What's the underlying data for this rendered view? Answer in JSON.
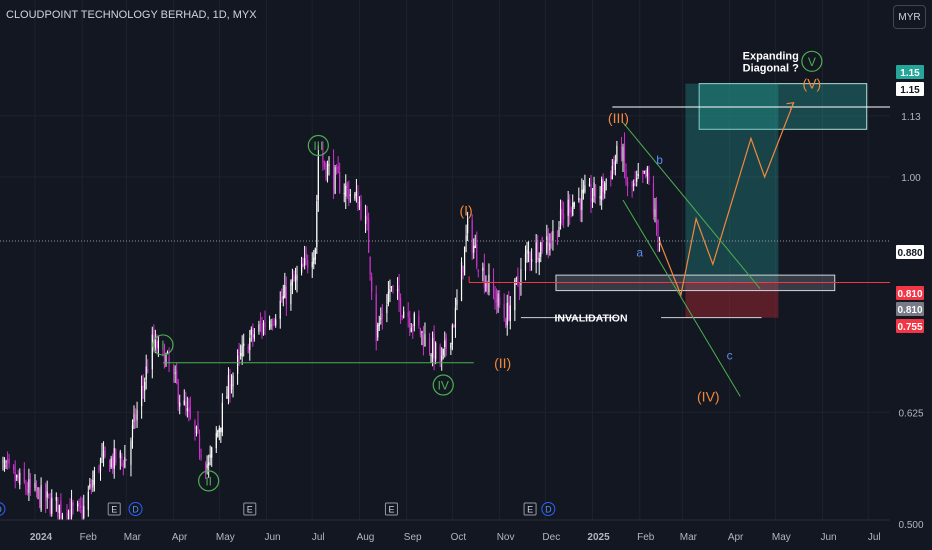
{
  "header": {
    "title": "CLOUDPOINT TECHNOLOGY BERHAD, 1D, MYX",
    "currency": "MYR"
  },
  "colors": {
    "background": "#131722",
    "up": "#ffffff",
    "down": "#cc33cc",
    "wave_green": "#4caf50",
    "wave_orange": "#f0883e",
    "abc_blue": "#2962ff",
    "target_box": "#26a69a",
    "stop_box": "#b22833",
    "red_line": "#f23645"
  },
  "annotations": {
    "primary_waves": [
      {
        "label": "I",
        "date": "2024-03-25",
        "price": 0.715
      },
      {
        "label": "II",
        "date": "2024-04-24",
        "price": 0.545
      },
      {
        "label": "III",
        "date": "2024-07-05",
        "price": 1.065
      },
      {
        "label": "IV",
        "date": "2024-09-25",
        "price": 0.66
      },
      {
        "label": "V",
        "date": "2025-05-25",
        "price": 1.26
      }
    ],
    "intermediate_waves": [
      {
        "label": "(I)",
        "date": "2024-10-10",
        "price": 0.935
      },
      {
        "label": "(II)",
        "date": "2024-11-03",
        "price": 0.69
      },
      {
        "label": "(III)",
        "date": "2025-01-18",
        "price": 1.125
      },
      {
        "label": "(IV)",
        "date": "2025-03-18",
        "price": 0.645
      },
      {
        "label": "(V)",
        "date": "2025-05-25",
        "price": 1.205
      }
    ],
    "corrective_waves": [
      {
        "label": "a",
        "date": "2025-02-01",
        "price": 0.86
      },
      {
        "label": "b",
        "date": "2025-02-14",
        "price": 1.035
      },
      {
        "label": "c",
        "date": "2025-04-01",
        "price": 0.7
      }
    ],
    "expanding_diagonal": "Expanding\nDiagonal ?",
    "invalidation": "INVALIDATION"
  },
  "price_axis": {
    "ticks": [
      "1.13",
      "1.00",
      "0.625",
      "0.500"
    ],
    "markers": [
      {
        "label": "1.15",
        "bg": "#26a69a",
        "fg": "#ffffff"
      },
      {
        "label": "1.15",
        "bg": "#ffffff",
        "fg": "#131722"
      },
      {
        "label": "0.880",
        "bg": "#ffffff",
        "fg": "#131722"
      },
      {
        "label": "0.810",
        "bg": "#f23645",
        "fg": "#ffffff"
      },
      {
        "label": "0.810",
        "bg": "#787b86",
        "fg": "#ffffff"
      },
      {
        "label": "0.755",
        "bg": "#f23645",
        "fg": "#ffffff"
      }
    ]
  },
  "time_axis": {
    "labels": [
      "2024",
      "Feb",
      "Mar",
      "Apr",
      "May",
      "Jun",
      "Jul",
      "Aug",
      "Sep",
      "Oct",
      "Nov",
      "Dec",
      "2025",
      "Feb",
      "Mar",
      "Apr",
      "May",
      "Jun",
      "Jul"
    ],
    "event_badges": [
      "D",
      "E",
      "D",
      "E",
      "E",
      "E",
      "D"
    ]
  },
  "chart_data": {
    "type": "candlestick",
    "title": "CLOUDPOINT TECHNOLOGY BERHAD, 1D, MYX",
    "yscale": "log",
    "ylim": [
      0.47,
      1.36
    ],
    "xlim": [
      "2023-12-06",
      "2025-07-31"
    ],
    "last_price": 0.88,
    "ohlc_anchors": [
      {
        "date": "2023-12-06",
        "close": 0.565
      },
      {
        "date": "2023-12-20",
        "close": 0.545
      },
      {
        "date": "2024-01-02",
        "close": 0.53
      },
      {
        "date": "2024-01-18",
        "close": 0.515
      },
      {
        "date": "2024-02-01",
        "close": 0.51
      },
      {
        "date": "2024-02-12",
        "close": 0.565
      },
      {
        "date": "2024-03-01",
        "close": 0.57
      },
      {
        "date": "2024-03-18",
        "close": 0.715
      },
      {
        "date": "2024-03-26",
        "close": 0.7
      },
      {
        "date": "2024-04-08",
        "close": 0.63
      },
      {
        "date": "2024-04-24",
        "close": 0.56
      },
      {
        "date": "2024-05-08",
        "close": 0.665
      },
      {
        "date": "2024-05-20",
        "close": 0.72
      },
      {
        "date": "2024-06-05",
        "close": 0.76
      },
      {
        "date": "2024-06-25",
        "close": 0.83
      },
      {
        "date": "2024-07-03",
        "close": 0.875
      },
      {
        "date": "2024-07-05",
        "close": 1.045
      },
      {
        "date": "2024-07-15",
        "close": 1.0
      },
      {
        "date": "2024-08-01",
        "close": 0.95
      },
      {
        "date": "2024-08-06",
        "close": 0.9
      },
      {
        "date": "2024-08-12",
        "close": 0.73
      },
      {
        "date": "2024-08-21",
        "close": 0.8
      },
      {
        "date": "2024-09-05",
        "close": 0.75
      },
      {
        "date": "2024-09-24",
        "close": 0.69
      },
      {
        "date": "2024-10-03",
        "close": 0.76
      },
      {
        "date": "2024-10-11",
        "close": 0.9
      },
      {
        "date": "2024-10-22",
        "close": 0.82
      },
      {
        "date": "2024-11-05",
        "close": 0.755
      },
      {
        "date": "2024-11-19",
        "close": 0.855
      },
      {
        "date": "2024-12-06",
        "close": 0.89
      },
      {
        "date": "2024-12-17",
        "close": 0.95
      },
      {
        "date": "2025-01-06",
        "close": 0.97
      },
      {
        "date": "2025-01-20",
        "close": 1.06
      },
      {
        "date": "2025-01-24",
        "close": 0.97
      },
      {
        "date": "2025-02-06",
        "close": 1.0
      },
      {
        "date": "2025-02-14",
        "close": 0.88
      }
    ],
    "horizontal_levels": [
      {
        "name": "target",
        "price": 1.15
      },
      {
        "name": "stop",
        "price": 0.81
      },
      {
        "name": "invalidation",
        "price": 0.755
      }
    ],
    "projection_path": [
      {
        "date": "2025-02-14",
        "price": 0.88
      },
      {
        "date": "2025-02-28",
        "price": 0.79
      },
      {
        "date": "2025-03-10",
        "price": 0.92
      },
      {
        "date": "2025-03-21",
        "price": 0.84
      },
      {
        "date": "2025-04-15",
        "price": 1.08
      },
      {
        "date": "2025-04-24",
        "price": 1.0
      },
      {
        "date": "2025-05-13",
        "price": 1.16
      }
    ]
  }
}
